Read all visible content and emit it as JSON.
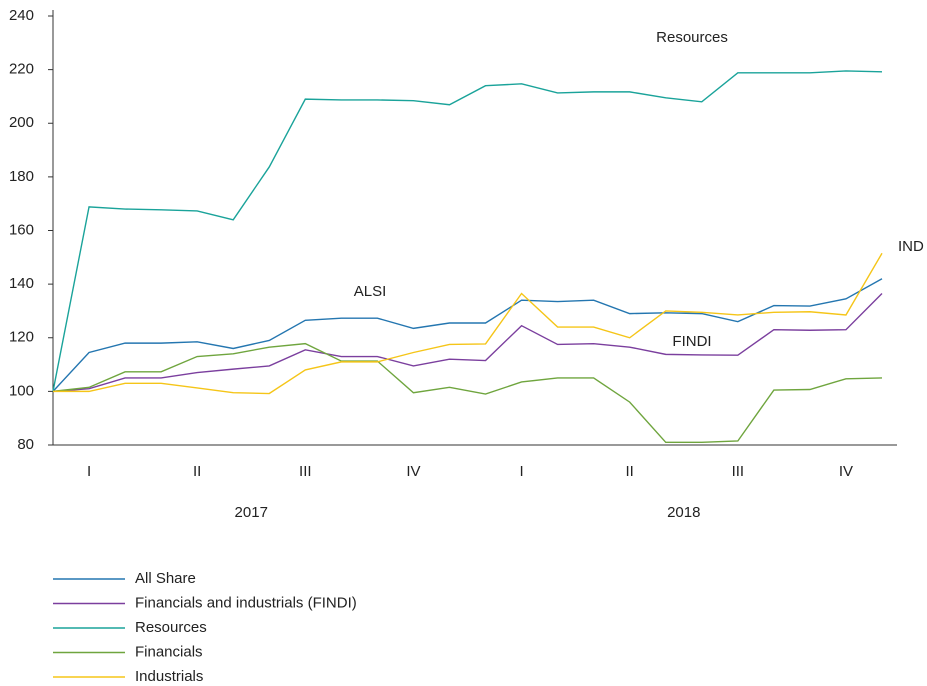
{
  "chart_data": {
    "type": "line",
    "categories": [
      null,
      "I",
      null,
      null,
      "II",
      null,
      null,
      "III",
      null,
      null,
      "IV",
      null,
      null,
      "I",
      null,
      null,
      "II",
      null,
      null,
      "III",
      null,
      null,
      "IV",
      null
    ],
    "x_group_labels": [
      "2017",
      "2018"
    ],
    "ylim": [
      80,
      240
    ],
    "yticks": [
      80,
      100,
      120,
      140,
      160,
      180,
      200,
      220,
      240
    ],
    "grid": false,
    "annotations": [
      "Resources",
      "ALSI",
      "FINDI",
      "IND"
    ],
    "series": [
      {
        "name": "All Share",
        "color": "#2476b0",
        "values": [
          100,
          114.5,
          118,
          118,
          118.5,
          116,
          119,
          126.5,
          127.3,
          127.3,
          123.5,
          125.5,
          125.5,
          134,
          133.5,
          134,
          129,
          129.3,
          129,
          126,
          132,
          131.8,
          134.5,
          142
        ]
      },
      {
        "name": "Financials and industrials (FINDI)",
        "color": "#7b3f9e",
        "values": [
          100,
          101,
          105,
          105,
          107,
          108.3,
          109.5,
          115.5,
          113,
          113,
          109.5,
          112,
          111.5,
          124.5,
          117.5,
          117.8,
          116.5,
          113.8,
          113.6,
          113.5,
          123,
          122.8,
          123,
          136.5
        ]
      },
      {
        "name": "Resources",
        "color": "#1aa39a",
        "values": [
          100,
          168.8,
          168,
          167.7,
          167.3,
          164,
          183.7,
          209,
          208.7,
          208.7,
          208.4,
          206.9,
          214,
          214.7,
          211.3,
          211.7,
          211.7,
          209.5,
          208,
          218.8,
          218.8,
          218.8,
          219.5,
          219.2
        ]
      },
      {
        "name": "Financials",
        "color": "#6fa53e",
        "values": [
          100,
          101.5,
          107.3,
          107.3,
          113,
          114,
          116.5,
          117.8,
          111.3,
          111.3,
          99.5,
          101.5,
          99,
          103.5,
          105,
          105,
          96,
          81,
          81,
          81.5,
          100.5,
          100.7,
          104.7,
          105
        ]
      },
      {
        "name": "Industrials",
        "color": "#f5c518",
        "values": [
          100,
          100,
          103,
          103,
          101.3,
          99.5,
          99.2,
          108,
          111,
          111,
          114.5,
          117.5,
          117.7,
          136.5,
          124,
          124,
          120,
          130,
          129.5,
          128.5,
          129.5,
          129.7,
          128.5,
          151.5
        ]
      }
    ]
  }
}
